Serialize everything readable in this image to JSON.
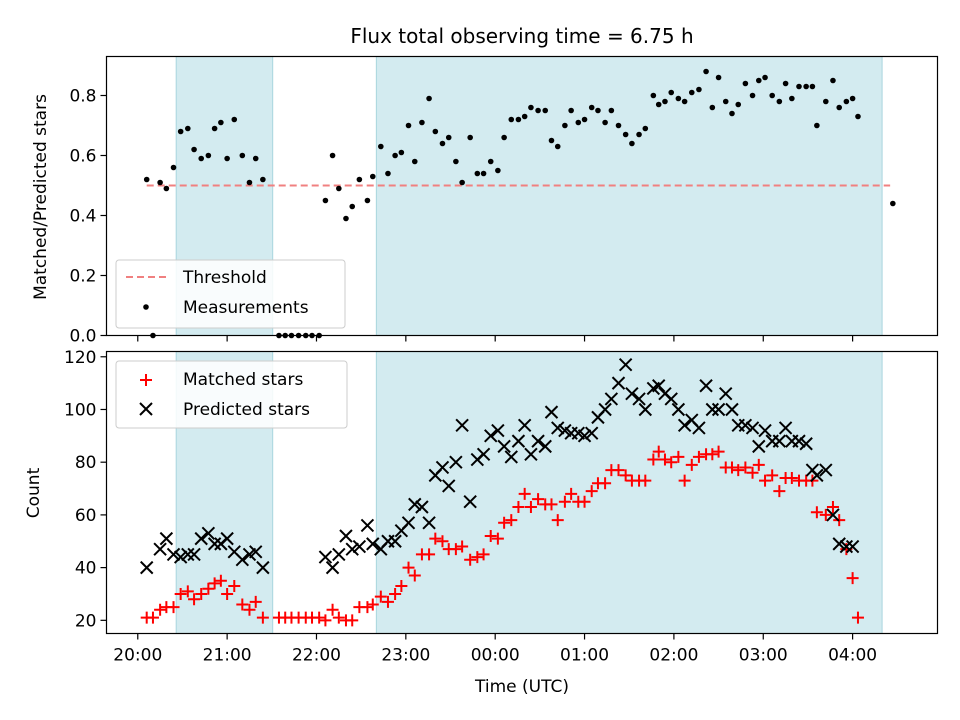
{
  "chart_data": {
    "type": "scatter",
    "title": "Flux total observing time = 6.75 h",
    "xlabel": "Time (UTC)",
    "x_axis": {
      "unit": "hours since 20:00 UTC (tick labels shown as clock time)",
      "range": [
        -0.35,
        8.95
      ],
      "ticks": [
        0,
        1,
        2,
        3,
        4,
        5,
        6,
        7,
        8
      ],
      "tick_labels": [
        "20:00",
        "21:00",
        "22:00",
        "23:00",
        "00:00",
        "01:00",
        "02:00",
        "03:00",
        "04:00"
      ]
    },
    "shaded_intervals": [
      [
        0.43,
        1.51
      ],
      [
        2.67,
        8.33
      ]
    ],
    "shade_color": "#d3ebf0",
    "top": {
      "ylabel": "Matched/Predicted stars",
      "ylim": [
        0,
        0.93
      ],
      "yticks": [
        0.0,
        0.2,
        0.4,
        0.6,
        0.8
      ],
      "ytick_labels": [
        "0.0",
        "0.2",
        "0.4",
        "0.6",
        "0.8"
      ],
      "threshold": {
        "name": "Threshold",
        "value": 0.5,
        "x": [
          0.1,
          8.42
        ],
        "color": "#f08080"
      },
      "measurements_name": "Measurements",
      "measurements": [
        [
          0.1,
          0.52
        ],
        [
          0.17,
          0.0
        ],
        [
          0.25,
          0.51
        ],
        [
          0.32,
          0.49
        ],
        [
          0.4,
          0.56
        ],
        [
          0.48,
          0.68
        ],
        [
          0.56,
          0.69
        ],
        [
          0.63,
          0.62
        ],
        [
          0.71,
          0.59
        ],
        [
          0.79,
          0.6
        ],
        [
          0.86,
          0.69
        ],
        [
          0.93,
          0.71
        ],
        [
          1.0,
          0.59
        ],
        [
          1.08,
          0.72
        ],
        [
          1.17,
          0.6
        ],
        [
          1.25,
          0.51
        ],
        [
          1.32,
          0.59
        ],
        [
          1.4,
          0.52
        ],
        [
          1.58,
          0.0
        ],
        [
          1.65,
          0.0
        ],
        [
          1.72,
          0.0
        ],
        [
          1.8,
          0.0
        ],
        [
          1.88,
          0.0
        ],
        [
          1.95,
          0.0
        ],
        [
          2.03,
          0.0
        ],
        [
          2.1,
          0.45
        ],
        [
          2.18,
          0.6
        ],
        [
          2.25,
          0.49
        ],
        [
          2.33,
          0.39
        ],
        [
          2.4,
          0.43
        ],
        [
          2.48,
          0.52
        ],
        [
          2.57,
          0.45
        ],
        [
          2.63,
          0.53
        ],
        [
          2.72,
          0.63
        ],
        [
          2.8,
          0.54
        ],
        [
          2.88,
          0.6
        ],
        [
          2.95,
          0.61
        ],
        [
          3.03,
          0.7
        ],
        [
          3.1,
          0.58
        ],
        [
          3.18,
          0.71
        ],
        [
          3.26,
          0.79
        ],
        [
          3.33,
          0.68
        ],
        [
          3.41,
          0.64
        ],
        [
          3.48,
          0.66
        ],
        [
          3.56,
          0.58
        ],
        [
          3.63,
          0.51
        ],
        [
          3.72,
          0.66
        ],
        [
          3.8,
          0.54
        ],
        [
          3.87,
          0.54
        ],
        [
          3.95,
          0.58
        ],
        [
          4.03,
          0.55
        ],
        [
          4.1,
          0.66
        ],
        [
          4.18,
          0.72
        ],
        [
          4.26,
          0.72
        ],
        [
          4.33,
          0.73
        ],
        [
          4.4,
          0.76
        ],
        [
          4.48,
          0.75
        ],
        [
          4.56,
          0.75
        ],
        [
          4.63,
          0.65
        ],
        [
          4.7,
          0.63
        ],
        [
          4.78,
          0.7
        ],
        [
          4.85,
          0.75
        ],
        [
          4.93,
          0.71
        ],
        [
          5.0,
          0.72
        ],
        [
          5.08,
          0.76
        ],
        [
          5.15,
          0.75
        ],
        [
          5.23,
          0.71
        ],
        [
          5.3,
          0.75
        ],
        [
          5.38,
          0.7
        ],
        [
          5.46,
          0.67
        ],
        [
          5.53,
          0.64
        ],
        [
          5.61,
          0.67
        ],
        [
          5.68,
          0.69
        ],
        [
          5.77,
          0.8
        ],
        [
          5.83,
          0.77
        ],
        [
          5.9,
          0.78
        ],
        [
          5.97,
          0.81
        ],
        [
          6.05,
          0.79
        ],
        [
          6.12,
          0.78
        ],
        [
          6.2,
          0.81
        ],
        [
          6.28,
          0.82
        ],
        [
          6.36,
          0.88
        ],
        [
          6.43,
          0.76
        ],
        [
          6.5,
          0.86
        ],
        [
          6.58,
          0.78
        ],
        [
          6.65,
          0.74
        ],
        [
          6.72,
          0.77
        ],
        [
          6.8,
          0.84
        ],
        [
          6.88,
          0.8
        ],
        [
          6.95,
          0.85
        ],
        [
          7.02,
          0.86
        ],
        [
          7.1,
          0.8
        ],
        [
          7.18,
          0.78
        ],
        [
          7.25,
          0.84
        ],
        [
          7.32,
          0.79
        ],
        [
          7.4,
          0.83
        ],
        [
          7.48,
          0.83
        ],
        [
          7.55,
          0.83
        ],
        [
          7.6,
          0.7
        ],
        [
          7.7,
          0.78
        ],
        [
          7.78,
          0.85
        ],
        [
          7.85,
          0.76
        ],
        [
          7.93,
          0.78
        ],
        [
          8.0,
          0.79
        ],
        [
          8.06,
          0.73
        ],
        [
          8.45,
          0.44
        ]
      ]
    },
    "bottom": {
      "ylabel": "Count",
      "ylim": [
        15,
        122
      ],
      "yticks": [
        20,
        40,
        60,
        80,
        100,
        120
      ],
      "ytick_labels": [
        "20",
        "40",
        "60",
        "80",
        "100",
        "120"
      ],
      "matched_name": "Matched stars",
      "predicted_name": "Predicted stars",
      "matched_color": "#ff0000",
      "predicted_color": "#000000",
      "matched": [
        [
          0.1,
          21
        ],
        [
          0.17,
          21
        ],
        [
          0.25,
          24
        ],
        [
          0.32,
          25
        ],
        [
          0.4,
          25
        ],
        [
          0.48,
          30
        ],
        [
          0.56,
          31
        ],
        [
          0.63,
          28
        ],
        [
          0.71,
          30
        ],
        [
          0.79,
          32
        ],
        [
          0.86,
          34
        ],
        [
          0.93,
          35
        ],
        [
          1.0,
          30
        ],
        [
          1.08,
          33
        ],
        [
          1.17,
          26
        ],
        [
          1.25,
          24
        ],
        [
          1.32,
          27
        ],
        [
          1.4,
          21
        ],
        [
          1.58,
          21
        ],
        [
          1.65,
          21
        ],
        [
          1.72,
          21
        ],
        [
          1.8,
          21
        ],
        [
          1.88,
          21
        ],
        [
          1.95,
          21
        ],
        [
          2.03,
          21
        ],
        [
          2.1,
          20
        ],
        [
          2.18,
          24
        ],
        [
          2.25,
          21
        ],
        [
          2.33,
          20
        ],
        [
          2.4,
          20
        ],
        [
          2.48,
          25
        ],
        [
          2.57,
          25
        ],
        [
          2.63,
          26
        ],
        [
          2.72,
          29
        ],
        [
          2.8,
          27
        ],
        [
          2.88,
          30
        ],
        [
          2.95,
          33
        ],
        [
          3.03,
          40
        ],
        [
          3.1,
          37
        ],
        [
          3.18,
          45
        ],
        [
          3.26,
          45
        ],
        [
          3.33,
          51
        ],
        [
          3.41,
          50
        ],
        [
          3.48,
          47
        ],
        [
          3.56,
          47
        ],
        [
          3.63,
          48
        ],
        [
          3.72,
          43
        ],
        [
          3.8,
          44
        ],
        [
          3.87,
          45
        ],
        [
          3.95,
          52
        ],
        [
          4.03,
          51
        ],
        [
          4.1,
          57
        ],
        [
          4.18,
          58
        ],
        [
          4.26,
          63
        ],
        [
          4.33,
          68
        ],
        [
          4.4,
          63
        ],
        [
          4.48,
          66
        ],
        [
          4.56,
          64
        ],
        [
          4.63,
          64
        ],
        [
          4.7,
          58
        ],
        [
          4.78,
          65
        ],
        [
          4.85,
          68
        ],
        [
          4.93,
          65
        ],
        [
          5.0,
          65
        ],
        [
          5.08,
          69
        ],
        [
          5.15,
          72
        ],
        [
          5.23,
          72
        ],
        [
          5.3,
          77
        ],
        [
          5.38,
          77
        ],
        [
          5.46,
          75
        ],
        [
          5.53,
          73
        ],
        [
          5.61,
          73
        ],
        [
          5.68,
          73
        ],
        [
          5.77,
          81
        ],
        [
          5.83,
          84
        ],
        [
          5.9,
          81
        ],
        [
          5.97,
          80
        ],
        [
          6.05,
          82
        ],
        [
          6.12,
          73
        ],
        [
          6.2,
          79
        ],
        [
          6.28,
          82
        ],
        [
          6.36,
          83
        ],
        [
          6.43,
          83
        ],
        [
          6.5,
          84
        ],
        [
          6.58,
          78
        ],
        [
          6.65,
          78
        ],
        [
          6.72,
          77
        ],
        [
          6.8,
          78
        ],
        [
          6.88,
          76
        ],
        [
          6.95,
          79
        ],
        [
          7.02,
          73
        ],
        [
          7.1,
          75
        ],
        [
          7.18,
          69
        ],
        [
          7.25,
          74
        ],
        [
          7.32,
          74
        ],
        [
          7.4,
          73
        ],
        [
          7.48,
          73
        ],
        [
          7.55,
          73
        ],
        [
          7.6,
          61
        ],
        [
          7.7,
          60
        ],
        [
          7.78,
          63
        ],
        [
          7.85,
          58
        ],
        [
          7.93,
          47
        ],
        [
          8.0,
          36
        ],
        [
          8.06,
          21
        ]
      ],
      "predicted": [
        [
          0.1,
          40
        ],
        [
          0.25,
          47
        ],
        [
          0.32,
          51
        ],
        [
          0.4,
          45
        ],
        [
          0.48,
          44
        ],
        [
          0.56,
          45
        ],
        [
          0.63,
          45
        ],
        [
          0.71,
          51
        ],
        [
          0.79,
          53
        ],
        [
          0.86,
          49
        ],
        [
          0.93,
          49
        ],
        [
          1.0,
          51
        ],
        [
          1.08,
          46
        ],
        [
          1.17,
          43
        ],
        [
          1.25,
          45
        ],
        [
          1.32,
          46
        ],
        [
          1.4,
          40
        ],
        [
          2.1,
          44
        ],
        [
          2.18,
          40
        ],
        [
          2.25,
          45
        ],
        [
          2.33,
          52
        ],
        [
          2.4,
          47
        ],
        [
          2.48,
          48
        ],
        [
          2.57,
          56
        ],
        [
          2.63,
          49
        ],
        [
          2.72,
          47
        ],
        [
          2.8,
          50
        ],
        [
          2.88,
          50
        ],
        [
          2.95,
          54
        ],
        [
          3.03,
          57
        ],
        [
          3.1,
          64
        ],
        [
          3.18,
          63
        ],
        [
          3.26,
          57
        ],
        [
          3.33,
          75
        ],
        [
          3.41,
          78
        ],
        [
          3.48,
          71
        ],
        [
          3.56,
          80
        ],
        [
          3.63,
          94
        ],
        [
          3.72,
          65
        ],
        [
          3.8,
          81
        ],
        [
          3.87,
          83
        ],
        [
          3.95,
          90
        ],
        [
          4.03,
          92
        ],
        [
          4.1,
          86
        ],
        [
          4.18,
          82
        ],
        [
          4.26,
          88
        ],
        [
          4.33,
          94
        ],
        [
          4.4,
          83
        ],
        [
          4.48,
          88
        ],
        [
          4.56,
          86
        ],
        [
          4.63,
          99
        ],
        [
          4.7,
          93
        ],
        [
          4.78,
          92
        ],
        [
          4.85,
          91
        ],
        [
          4.93,
          91
        ],
        [
          5.0,
          90
        ],
        [
          5.08,
          91
        ],
        [
          5.15,
          97
        ],
        [
          5.23,
          100
        ],
        [
          5.3,
          104
        ],
        [
          5.38,
          110
        ],
        [
          5.46,
          117
        ],
        [
          5.53,
          106
        ],
        [
          5.61,
          104
        ],
        [
          5.68,
          100
        ],
        [
          5.77,
          108
        ],
        [
          5.83,
          109
        ],
        [
          5.9,
          106
        ],
        [
          5.97,
          104
        ],
        [
          6.05,
          100
        ],
        [
          6.12,
          94
        ],
        [
          6.2,
          96
        ],
        [
          6.28,
          93
        ],
        [
          6.36,
          109
        ],
        [
          6.43,
          100
        ],
        [
          6.5,
          100
        ],
        [
          6.58,
          106
        ],
        [
          6.65,
          100
        ],
        [
          6.72,
          94
        ],
        [
          6.8,
          94
        ],
        [
          6.88,
          93
        ],
        [
          6.95,
          86
        ],
        [
          7.02,
          92
        ],
        [
          7.1,
          88
        ],
        [
          7.18,
          88
        ],
        [
          7.25,
          93
        ],
        [
          7.32,
          88
        ],
        [
          7.4,
          88
        ],
        [
          7.48,
          87
        ],
        [
          7.55,
          77
        ],
        [
          7.6,
          75
        ],
        [
          7.7,
          77
        ],
        [
          7.78,
          60
        ],
        [
          7.85,
          49
        ],
        [
          7.93,
          48
        ],
        [
          8.0,
          48
        ]
      ]
    }
  }
}
